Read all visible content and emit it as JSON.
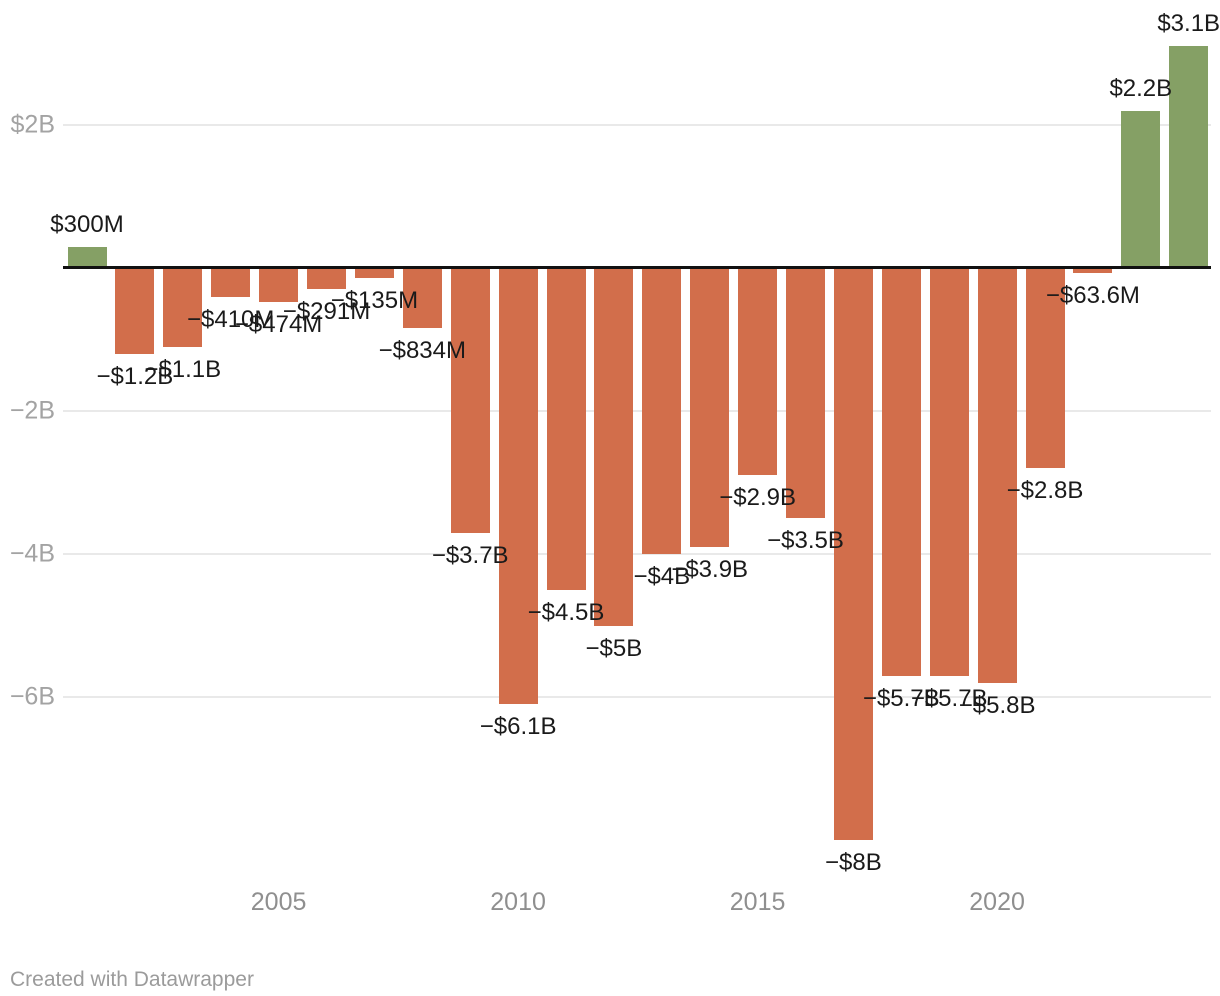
{
  "chart_data": {
    "type": "bar",
    "title": "",
    "x": [
      2001,
      2002,
      2003,
      2004,
      2005,
      2006,
      2007,
      2008,
      2009,
      2010,
      2011,
      2012,
      2013,
      2014,
      2015,
      2016,
      2017,
      2018,
      2019,
      2020,
      2021,
      2022,
      2023,
      2024
    ],
    "values_billions": [
      0.3,
      -1.2,
      -1.1,
      -0.41,
      -0.474,
      -0.291,
      -0.135,
      -0.834,
      -3.7,
      -6.1,
      -4.5,
      -5.0,
      -4.0,
      -3.9,
      -2.9,
      -3.5,
      -8.0,
      -5.7,
      -5.7,
      -5.8,
      -2.8,
      -0.0636,
      2.2,
      3.1
    ],
    "labels": [
      "$300M",
      "−$1.2B",
      "−$1.1B",
      "−$410M",
      "−$474M",
      "−$291M",
      "−$135M",
      "−$834M",
      "−$3.7B",
      "−$6.1B",
      "−$4.5B",
      "−$5B",
      "−$4B",
      "−$3.9B",
      "−$2.9B",
      "−$3.5B",
      "−$8B",
      "−$5.7B",
      "−$5.7B",
      "−$5.8B",
      "−$2.8B",
      "−$63.6M",
      "$2.2B",
      "$3.1B"
    ],
    "colors": {
      "positive": "#85a065",
      "negative": "#d26e4b"
    },
    "y_axis": {
      "ticks": [
        {
          "value": 2,
          "label": "$2B"
        },
        {
          "value": -2,
          "label": "−2B"
        },
        {
          "value": -4,
          "label": "−4B"
        },
        {
          "value": -6,
          "label": "−6B"
        }
      ],
      "zero_line": true,
      "grid": "horizontal"
    },
    "x_axis": {
      "ticks": [
        {
          "value": 2005,
          "label": "2005"
        },
        {
          "value": 2010,
          "label": "2010"
        },
        {
          "value": 2015,
          "label": "2015"
        },
        {
          "value": 2020,
          "label": "2020"
        }
      ]
    },
    "ylim": [
      -8.3,
      3.75
    ],
    "legend": "none"
  },
  "footer": {
    "credit": "Created with Datawrapper"
  }
}
